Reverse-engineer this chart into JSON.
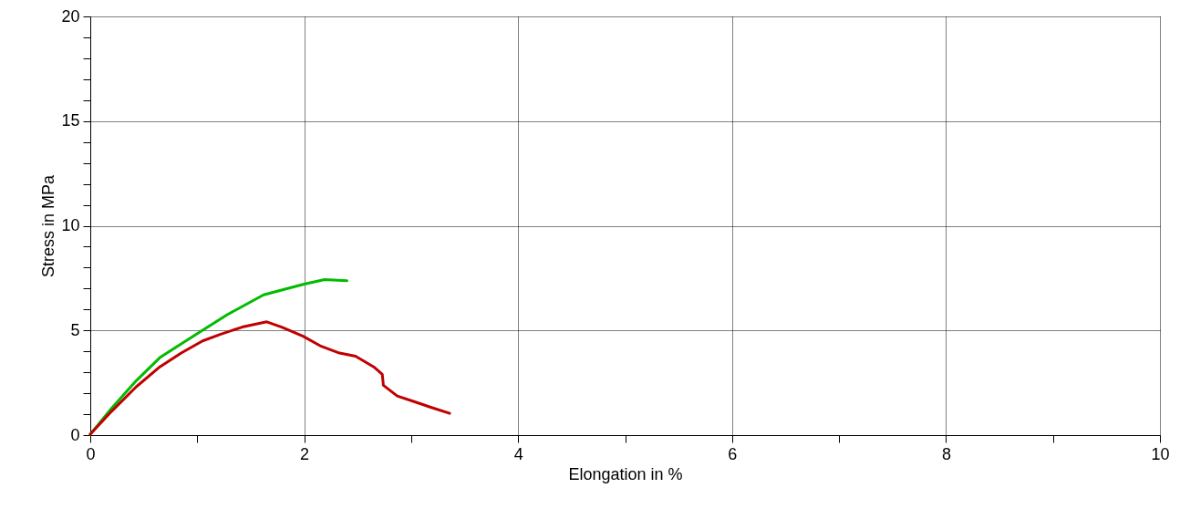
{
  "chart_data": {
    "type": "line",
    "xlabel": "Elongation in %",
    "ylabel": "Stress in MPa",
    "xlim": [
      0,
      10
    ],
    "ylim": [
      0,
      20
    ],
    "xticks": [
      0,
      {
        "value": 1,
        "label": null
      },
      2,
      {
        "value": 3,
        "label": null
      },
      4,
      {
        "value": 5,
        "label": null
      },
      6,
      {
        "value": 7,
        "label": null
      },
      8,
      {
        "value": 9,
        "label": null
      },
      10
    ],
    "yticks": [
      0,
      {
        "value": 1,
        "label": null
      },
      {
        "value": 2,
        "label": null
      },
      {
        "value": 3,
        "label": null
      },
      {
        "value": 4,
        "label": null
      },
      5,
      {
        "value": 6,
        "label": null
      },
      {
        "value": 7,
        "label": null
      },
      {
        "value": 8,
        "label": null
      },
      {
        "value": 9,
        "label": null
      },
      10,
      {
        "value": 11,
        "label": null
      },
      {
        "value": 12,
        "label": null
      },
      {
        "value": 13,
        "label": null
      },
      {
        "value": 14,
        "label": null
      },
      15,
      {
        "value": 16,
        "label": null
      },
      {
        "value": 17,
        "label": null
      },
      {
        "value": 18,
        "label": null
      },
      {
        "value": 19,
        "label": null
      },
      20
    ],
    "grid": true,
    "line_style": "solid",
    "series": [
      {
        "color": "#00bb00",
        "x": [
          0,
          0.2,
          0.43,
          0.65,
          1.0,
          1.28,
          1.62,
          1.99,
          2.19,
          2.4
        ],
        "values": [
          0.04,
          1.29,
          2.6,
          3.7,
          4.85,
          5.75,
          6.7,
          7.2,
          7.43,
          7.38
        ]
      },
      {
        "color": "#c00000",
        "x": [
          0,
          0.2,
          0.43,
          0.65,
          0.85,
          1.05,
          1.22,
          1.42,
          1.65,
          1.79,
          1.99,
          2.16,
          2.33,
          2.48,
          2.65,
          2.73,
          2.74,
          2.87,
          3.04,
          3.19,
          3.36
        ],
        "values": [
          0.04,
          1.14,
          2.31,
          3.26,
          3.92,
          4.5,
          4.82,
          5.16,
          5.41,
          5.16,
          4.72,
          4.24,
          3.92,
          3.77,
          3.26,
          2.9,
          2.38,
          1.87,
          1.58,
          1.32,
          1.04
        ]
      }
    ]
  }
}
